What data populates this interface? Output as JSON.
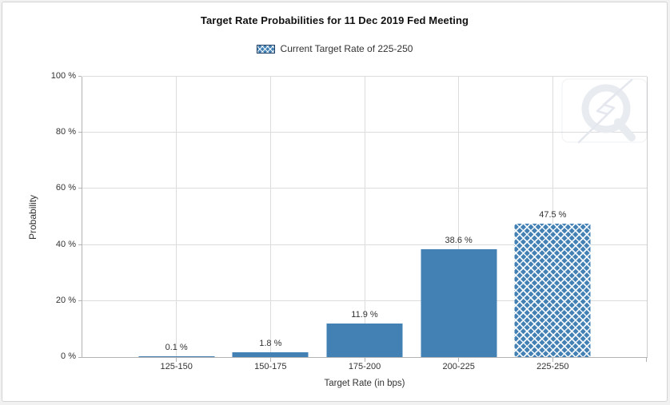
{
  "title": "Target Rate Probabilities for 11 Dec 2019 Fed Meeting",
  "legend": {
    "label": "Current Target Rate of 225-250",
    "swatch_icon": "crosshatch-swatch"
  },
  "watermark_icon": "q-lightning-logo",
  "colors": {
    "bar": "#4381b5",
    "hatch_line": "#ffffff",
    "legend_swatch_border": "#1c3c61",
    "gridline": "#dcdcdc",
    "axis_line": "#b3b3b3",
    "text": "#333333"
  },
  "chart_data": {
    "type": "bar",
    "title": "Target Rate Probabilities for 11 Dec 2019 Fed Meeting",
    "categories": [
      "125-150",
      "150-175",
      "175-200",
      "200-225",
      "225-250"
    ],
    "values": [
      0.1,
      1.8,
      11.9,
      38.6,
      47.5
    ],
    "value_labels": [
      "0.1 %",
      "1.8 %",
      "11.9 %",
      "38.6 %",
      "47.5 %"
    ],
    "highlighted_category": "225-250",
    "highlight_style": "crosshatch",
    "xlabel": "Target Rate (in bps)",
    "ylabel": "Probability",
    "ylim": [
      0,
      100
    ],
    "ytick_values": [
      0,
      20,
      40,
      60,
      80,
      100
    ],
    "ytick_labels": [
      "0 %",
      "20 %",
      "40 %",
      "60 %",
      "80 %",
      "100 %"
    ],
    "grid": true,
    "legend_entries": [
      "Current Target Rate of 225-250"
    ],
    "legend_position": "top-center"
  }
}
